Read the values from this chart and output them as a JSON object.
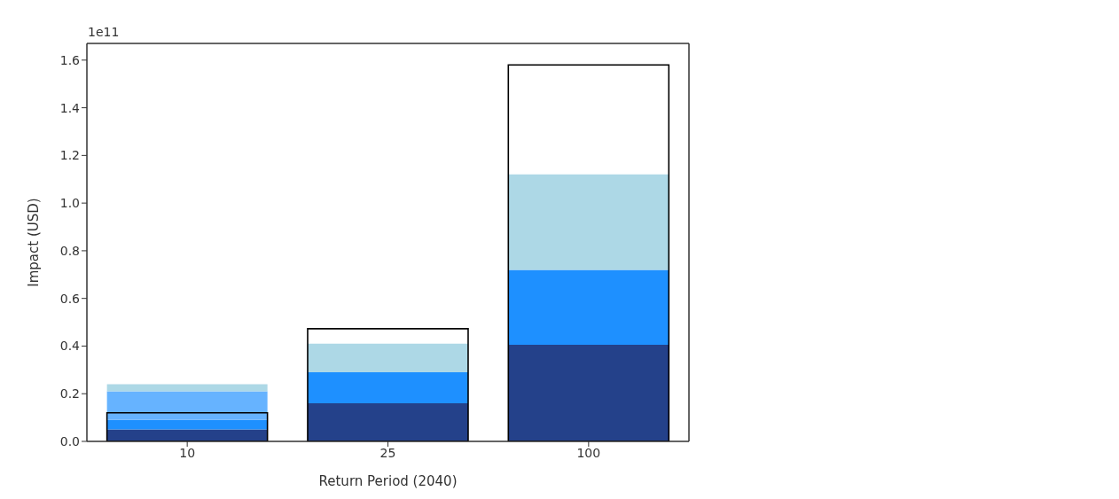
{
  "chart_data": [
    {
      "type": "bar",
      "xlabel": "Return Period (2040)",
      "ylabel": "Impact (USD)",
      "annotations": [
        "1e11"
      ],
      "categories": [
        "10",
        "25",
        "100"
      ],
      "series": [
        {
          "color": "#24418a",
          "values": [
            0.05,
            0.16,
            0.405
          ]
        },
        {
          "color": "#1e90ff",
          "values": [
            0.04,
            0.13,
            0.315
          ]
        },
        {
          "color": "#66b3ff",
          "values": [
            0.12,
            null,
            null
          ]
        },
        {
          "color": "#add8e6",
          "values": [
            0.03,
            0.12,
            0.4
          ]
        }
      ],
      "ylim": [
        0,
        1.67
      ],
      "yticks": [
        {
          "value": 0,
          "label": "0.0"
        },
        {
          "value": 0.2,
          "label": "0.2"
        },
        {
          "value": 0.4,
          "label": "0.4"
        },
        {
          "value": 0.6,
          "label": "0.6"
        },
        {
          "value": 0.8,
          "label": "0.8"
        },
        {
          "value": 1.0,
          "label": "1.0"
        },
        {
          "value": 1.2,
          "label": "1.2"
        },
        {
          "value": 1.4,
          "label": "1.4"
        },
        {
          "value": 1.6,
          "label": "1.6"
        }
      ],
      "stacked": true,
      "tick_labels": "y"
    },
    {
      "type": "bar",
      "categories": [
        "10",
        "25",
        "100"
      ],
      "series": [
        {
          "color": "#000000",
          "line_style": "solid",
          "values": [
            0.12,
            0.473,
            1.58
          ]
        }
      ],
      "ylim": [
        0,
        1.67
      ],
      "tick_labels": "x"
    }
  ]
}
